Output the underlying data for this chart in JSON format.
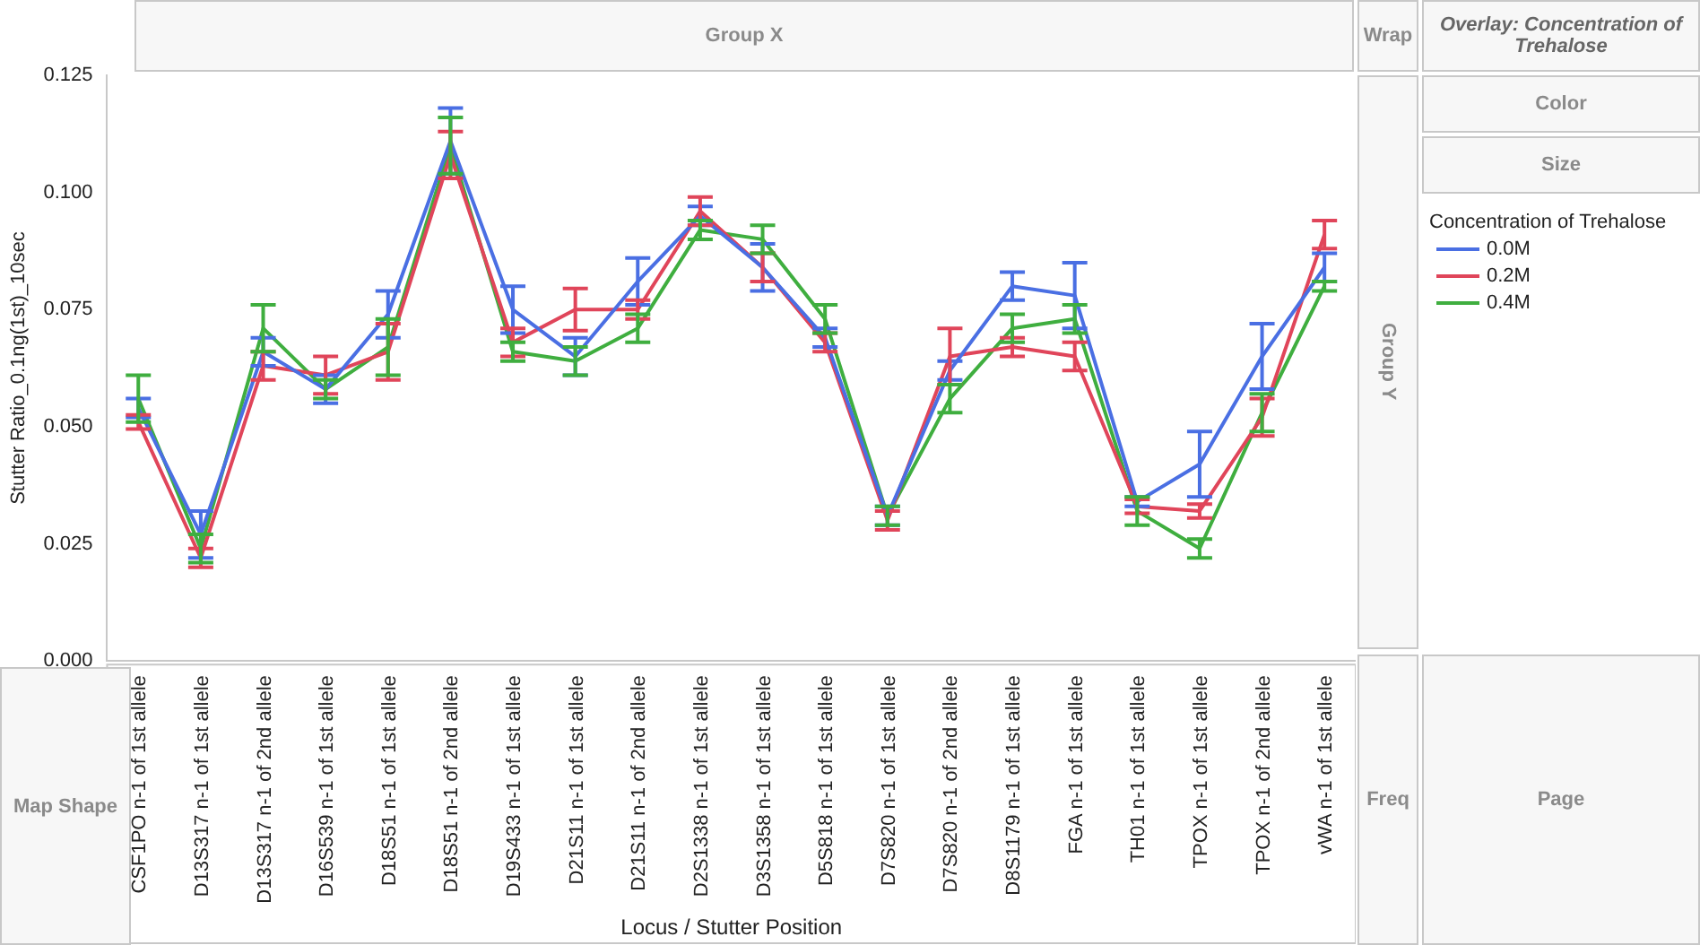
{
  "chart_data": {
    "type": "line",
    "ylabel": "Stutter Ratio_0.1ng(1st)_10sec",
    "xlabel": "Locus / Stutter Position",
    "legend_title": "Concentration of Trehalose",
    "legend": "right",
    "line_style": "solid",
    "grid": false,
    "categories": [
      "CSF1PO n-1 of 1st allele",
      "D13S317 n-1 of 1st allele",
      "D13S317 n-1 of 2nd allele",
      "D16S539 n-1 of 1st allele",
      "D18S51 n-1 of 1st allele",
      "D18S51 n-1 of 2nd allele",
      "D19S433 n-1 of 1st allele",
      "D21S11 n-1 of 1st allele",
      "D21S11 n-1 of 2nd allele",
      "D2S1338 n-1 of 1st allele",
      "D3S1358 n-1 of 1st allele",
      "D5S818 n-1 of 1st allele",
      "D7S820 n-1 of 1st allele",
      "D7S820 n-1 of 2nd allele",
      "D8S1179 n-1 of 1st allele",
      "FGA n-1 of 1st allele",
      "TH01 n-1 of 1st allele",
      "TPOX n-1 of 1st allele",
      "TPOX n-1 of 2nd allele",
      "vWA n-1 of 1st allele"
    ],
    "ylim": [
      0,
      0.125
    ],
    "yticks": [
      {
        "value": 0,
        "label": "0.000"
      },
      0.025,
      {
        "value": 0.05,
        "label": "0.050"
      },
      0.075,
      {
        "value": 0.1,
        "label": "0.100"
      },
      0.125
    ],
    "series": [
      {
        "name": "0.0M",
        "color": "#4a6fe3",
        "values": [
          0.054,
          0.027,
          0.066,
          0.058,
          0.074,
          0.111,
          0.075,
          0.065,
          0.081,
          0.095,
          0.084,
          0.069,
          0.031,
          0.062,
          0.08,
          0.078,
          0.034,
          0.042,
          0.065,
          0.084
        ],
        "errors": [
          0.002,
          0.005,
          0.003,
          0.003,
          0.005,
          0.007,
          0.005,
          0.004,
          0.005,
          0.002,
          0.005,
          0.002,
          0.002,
          0.002,
          0.003,
          0.007,
          0.001,
          0.007,
          0.007,
          0.003
        ]
      },
      {
        "name": "0.2M",
        "color": "#e0455a",
        "values": [
          0.051,
          0.022,
          0.063,
          0.061,
          0.066,
          0.108,
          0.068,
          0.075,
          0.075,
          0.096,
          0.084,
          0.068,
          0.03,
          0.065,
          0.067,
          0.065,
          0.033,
          0.032,
          0.052,
          0.091
        ],
        "errors": [
          0.0015,
          0.002,
          0.003,
          0.004,
          0.006,
          0.005,
          0.003,
          0.0045,
          0.002,
          0.003,
          0.003,
          0.002,
          0.002,
          0.006,
          0.002,
          0.003,
          0.0015,
          0.0015,
          0.004,
          0.003
        ]
      },
      {
        "name": "0.4M",
        "color": "#3fae3f",
        "values": [
          0.056,
          0.024,
          0.071,
          0.058,
          0.067,
          0.11,
          0.066,
          0.064,
          0.071,
          0.092,
          0.09,
          0.073,
          0.031,
          0.056,
          0.071,
          0.073,
          0.032,
          0.024,
          0.053,
          0.08
        ],
        "errors": [
          0.005,
          0.003,
          0.005,
          0.002,
          0.006,
          0.006,
          0.002,
          0.003,
          0.003,
          0.002,
          0.003,
          0.003,
          0.002,
          0.003,
          0.003,
          0.003,
          0.003,
          0.002,
          0.004,
          0.001
        ]
      }
    ],
    "annotations": [
      "Group X",
      "Wrap",
      "Overlay: Concentration of Trehalose",
      "Color",
      "Size",
      "Group Y",
      "Map Shape",
      "Freq",
      "Page"
    ]
  }
}
